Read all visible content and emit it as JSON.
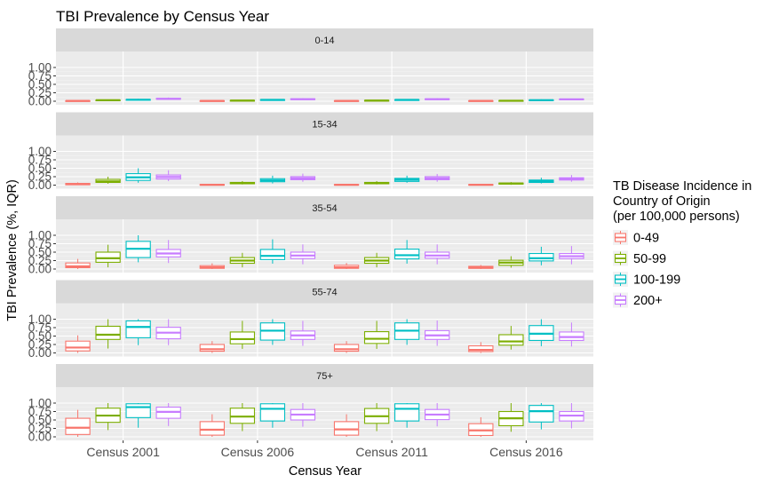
{
  "chart_data": {
    "type": "boxplot",
    "title": "TBI Prevalence by Census Year",
    "xlabel": "Census Year",
    "ylabel": "TBI Prevalence (%, IQR)",
    "categories": [
      "Census 2001",
      "Census 2006",
      "Census 2011",
      "Census 2016"
    ],
    "ylim": [
      0,
      1
    ],
    "y_ticks": [
      "0.00",
      "0.25",
      "0.50",
      "0.75",
      "1.00"
    ],
    "legend": {
      "title_lines": [
        "TB Disease Incidence in",
        " Country of Origin",
        "(per 100,000 persons)"
      ],
      "position": "right"
    },
    "series": [
      {
        "name": "0-49",
        "color": "#F8766D"
      },
      {
        "name": "50-99",
        "color": "#7CAE00"
      },
      {
        "name": "100-199",
        "color": "#00BFC4"
      },
      {
        "name": "200+",
        "color": "#C77CFF"
      }
    ],
    "facets": [
      {
        "label": "0-14",
        "boxes": [
          [
            [
              0.0,
              0.005,
              0.01,
              0.015,
              0.03
            ],
            [
              0.01,
              0.02,
              0.03,
              0.035,
              0.05
            ],
            [
              0.02,
              0.035,
              0.045,
              0.05,
              0.07
            ],
            [
              0.04,
              0.06,
              0.07,
              0.085,
              0.11
            ]
          ],
          [
            [
              0.0,
              0.005,
              0.01,
              0.015,
              0.03
            ],
            [
              0.005,
              0.015,
              0.02,
              0.025,
              0.04
            ],
            [
              0.02,
              0.03,
              0.04,
              0.045,
              0.06
            ],
            [
              0.035,
              0.05,
              0.06,
              0.07,
              0.09
            ]
          ],
          [
            [
              0.0,
              0.005,
              0.01,
              0.015,
              0.03
            ],
            [
              0.005,
              0.015,
              0.02,
              0.025,
              0.04
            ],
            [
              0.02,
              0.03,
              0.04,
              0.045,
              0.06
            ],
            [
              0.035,
              0.05,
              0.06,
              0.07,
              0.09
            ]
          ],
          [
            [
              0.0,
              0.005,
              0.01,
              0.015,
              0.03
            ],
            [
              0.005,
              0.01,
              0.015,
              0.02,
              0.035
            ],
            [
              0.015,
              0.025,
              0.03,
              0.04,
              0.055
            ],
            [
              0.03,
              0.045,
              0.055,
              0.065,
              0.08
            ]
          ]
        ]
      },
      {
        "label": "15-34",
        "boxes": [
          [
            [
              0.0,
              0.01,
              0.03,
              0.05,
              0.08
            ],
            [
              0.04,
              0.08,
              0.11,
              0.17,
              0.25
            ],
            [
              0.07,
              0.14,
              0.23,
              0.34,
              0.5
            ],
            [
              0.12,
              0.18,
              0.24,
              0.3,
              0.44
            ]
          ],
          [
            [
              0.0,
              0.005,
              0.01,
              0.02,
              0.04
            ],
            [
              0.02,
              0.04,
              0.06,
              0.08,
              0.12
            ],
            [
              0.05,
              0.1,
              0.14,
              0.19,
              0.28
            ],
            [
              0.1,
              0.16,
              0.2,
              0.25,
              0.34
            ]
          ],
          [
            [
              0.0,
              0.005,
              0.01,
              0.02,
              0.04
            ],
            [
              0.02,
              0.04,
              0.06,
              0.08,
              0.12
            ],
            [
              0.07,
              0.11,
              0.16,
              0.2,
              0.28
            ],
            [
              0.1,
              0.16,
              0.2,
              0.25,
              0.33
            ]
          ],
          [
            [
              0.0,
              0.005,
              0.01,
              0.02,
              0.03
            ],
            [
              0.01,
              0.03,
              0.05,
              0.06,
              0.09
            ],
            [
              0.05,
              0.08,
              0.12,
              0.15,
              0.22
            ],
            [
              0.1,
              0.15,
              0.18,
              0.22,
              0.3
            ]
          ]
        ]
      },
      {
        "label": "35-54",
        "boxes": [
          [
            [
              0.0,
              0.04,
              0.08,
              0.18,
              0.3
            ],
            [
              0.05,
              0.2,
              0.32,
              0.5,
              0.72
            ],
            [
              0.2,
              0.34,
              0.6,
              0.82,
              1.0
            ],
            [
              0.18,
              0.36,
              0.46,
              0.58,
              0.86
            ]
          ],
          [
            [
              0.0,
              0.02,
              0.05,
              0.1,
              0.17
            ],
            [
              0.05,
              0.17,
              0.25,
              0.34,
              0.48
            ],
            [
              0.16,
              0.28,
              0.39,
              0.58,
              0.88
            ],
            [
              0.14,
              0.31,
              0.4,
              0.5,
              0.73
            ]
          ],
          [
            [
              0.0,
              0.02,
              0.05,
              0.11,
              0.18
            ],
            [
              0.05,
              0.17,
              0.25,
              0.34,
              0.48
            ],
            [
              0.16,
              0.3,
              0.41,
              0.59,
              0.86
            ],
            [
              0.14,
              0.32,
              0.4,
              0.5,
              0.73
            ]
          ],
          [
            [
              0.0,
              0.02,
              0.04,
              0.08,
              0.12
            ],
            [
              0.04,
              0.11,
              0.19,
              0.26,
              0.38
            ],
            [
              0.11,
              0.24,
              0.32,
              0.46,
              0.66
            ],
            [
              0.14,
              0.31,
              0.38,
              0.46,
              0.68
            ]
          ]
        ]
      },
      {
        "label": "55-74",
        "boxes": [
          [
            [
              0.0,
              0.06,
              0.16,
              0.35,
              0.52
            ],
            [
              0.13,
              0.4,
              0.54,
              0.79,
              1.0
            ],
            [
              0.23,
              0.45,
              0.77,
              0.95,
              1.0
            ],
            [
              0.23,
              0.42,
              0.6,
              0.76,
              1.0
            ]
          ],
          [
            [
              0.0,
              0.05,
              0.11,
              0.25,
              0.35
            ],
            [
              0.12,
              0.27,
              0.41,
              0.62,
              0.95
            ],
            [
              0.24,
              0.38,
              0.66,
              0.89,
              1.0
            ],
            [
              0.21,
              0.4,
              0.52,
              0.65,
              0.95
            ]
          ],
          [
            [
              0.0,
              0.05,
              0.11,
              0.25,
              0.35
            ],
            [
              0.12,
              0.28,
              0.42,
              0.63,
              0.95
            ],
            [
              0.24,
              0.4,
              0.66,
              0.89,
              1.0
            ],
            [
              0.21,
              0.4,
              0.52,
              0.66,
              0.96
            ]
          ],
          [
            [
              0.0,
              0.04,
              0.09,
              0.21,
              0.32
            ],
            [
              0.1,
              0.23,
              0.34,
              0.54,
              0.8
            ],
            [
              0.2,
              0.37,
              0.57,
              0.81,
              1.0
            ],
            [
              0.19,
              0.37,
              0.47,
              0.62,
              0.9
            ]
          ]
        ]
      },
      {
        "label": "75+",
        "boxes": [
          [
            [
              0.0,
              0.07,
              0.27,
              0.55,
              0.8
            ],
            [
              0.2,
              0.43,
              0.63,
              0.85,
              1.0
            ],
            [
              0.27,
              0.57,
              0.88,
              0.98,
              1.0
            ],
            [
              0.32,
              0.55,
              0.74,
              0.88,
              1.0
            ]
          ],
          [
            [
              0.0,
              0.05,
              0.21,
              0.45,
              0.67
            ],
            [
              0.17,
              0.4,
              0.6,
              0.85,
              1.0
            ],
            [
              0.27,
              0.47,
              0.83,
              0.98,
              1.0
            ],
            [
              0.3,
              0.5,
              0.66,
              0.81,
              1.0
            ]
          ],
          [
            [
              0.0,
              0.05,
              0.22,
              0.45,
              0.67
            ],
            [
              0.17,
              0.4,
              0.61,
              0.84,
              1.0
            ],
            [
              0.27,
              0.47,
              0.83,
              0.98,
              1.0
            ],
            [
              0.31,
              0.51,
              0.66,
              0.81,
              1.0
            ]
          ],
          [
            [
              0.0,
              0.04,
              0.19,
              0.39,
              0.58
            ],
            [
              0.15,
              0.33,
              0.55,
              0.75,
              1.0
            ],
            [
              0.22,
              0.44,
              0.76,
              0.93,
              1.0
            ],
            [
              0.25,
              0.47,
              0.63,
              0.75,
              1.0
            ]
          ]
        ]
      }
    ]
  }
}
